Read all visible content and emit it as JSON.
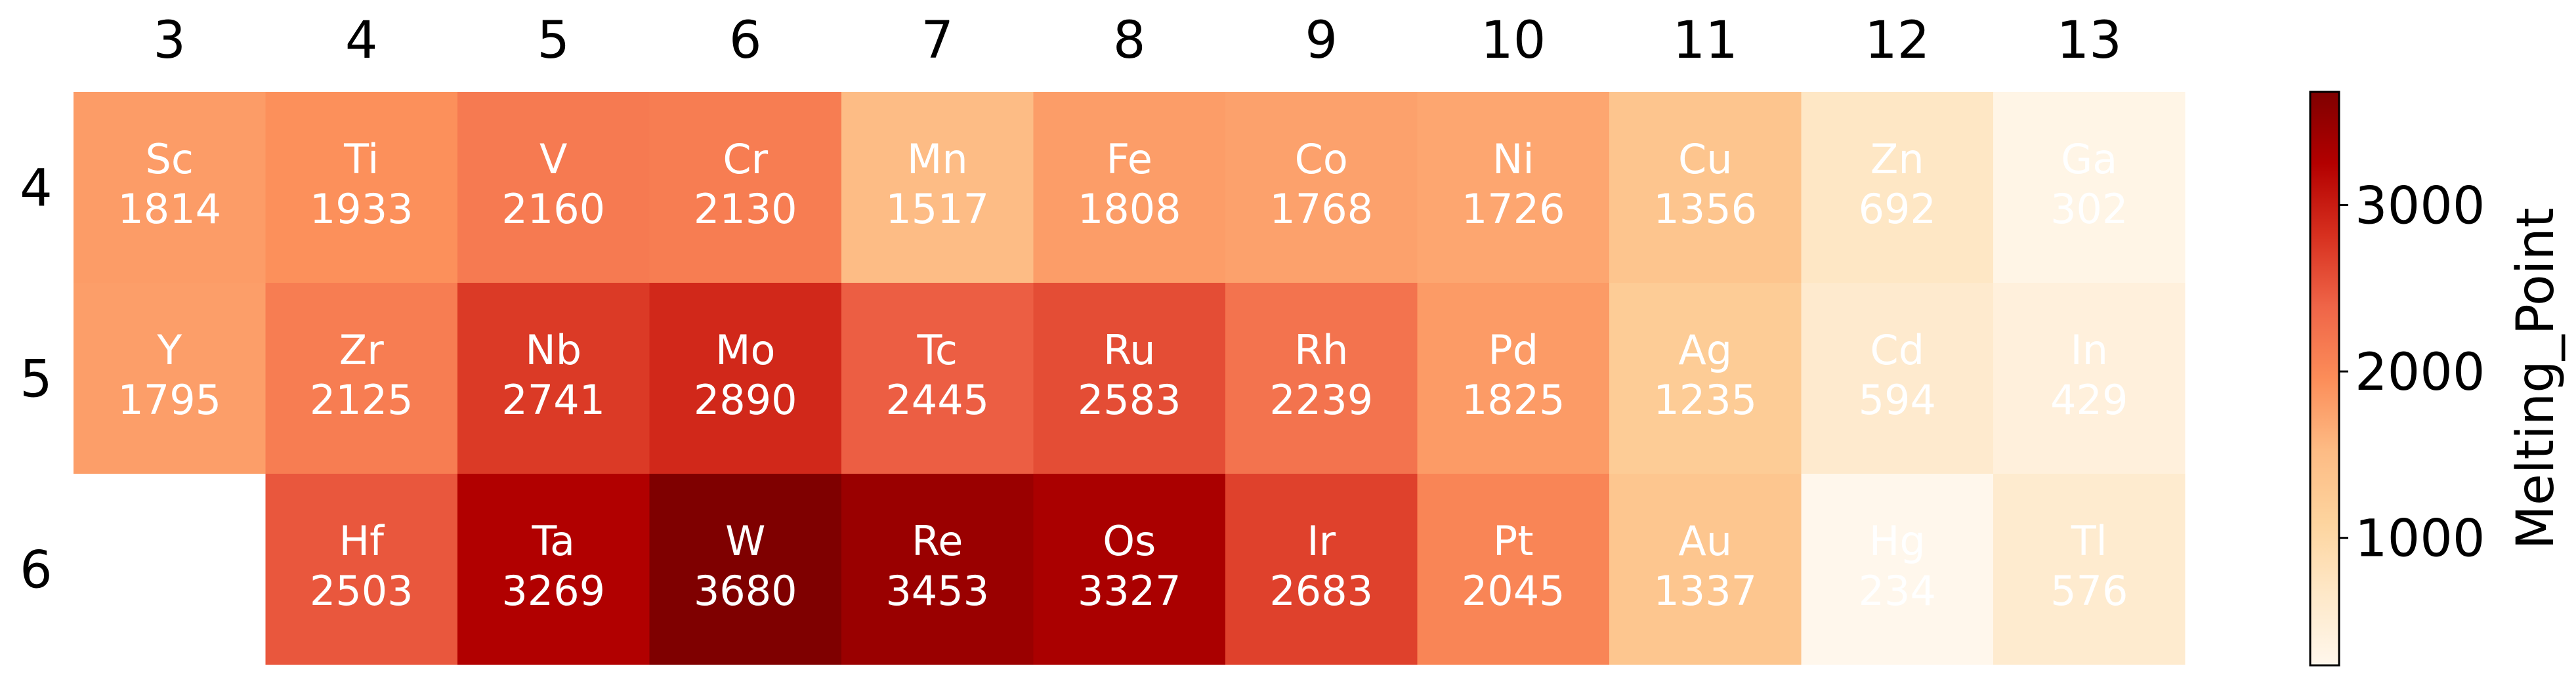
{
  "chart_data": {
    "type": "heatmap",
    "title": "",
    "xlabel": "",
    "ylabel": "",
    "colorbar_label": "Melting_Point",
    "colormap": "OrRd",
    "x_categories": [
      "3",
      "4",
      "5",
      "6",
      "7",
      "8",
      "9",
      "10",
      "11",
      "12",
      "13"
    ],
    "y_categories": [
      "4",
      "5",
      "6"
    ],
    "vmin": 234,
    "vmax": 3680,
    "colorbar_ticks": [
      "1000",
      "2000",
      "3000"
    ],
    "cells": [
      {
        "group": "3",
        "period": "4",
        "symbol": "Sc",
        "value": 1814
      },
      {
        "group": "4",
        "period": "4",
        "symbol": "Ti",
        "value": 1933
      },
      {
        "group": "5",
        "period": "4",
        "symbol": "V",
        "value": 2160
      },
      {
        "group": "6",
        "period": "4",
        "symbol": "Cr",
        "value": 2130
      },
      {
        "group": "7",
        "period": "4",
        "symbol": "Mn",
        "value": 1517
      },
      {
        "group": "8",
        "period": "4",
        "symbol": "Fe",
        "value": 1808
      },
      {
        "group": "9",
        "period": "4",
        "symbol": "Co",
        "value": 1768
      },
      {
        "group": "10",
        "period": "4",
        "symbol": "Ni",
        "value": 1726
      },
      {
        "group": "11",
        "period": "4",
        "symbol": "Cu",
        "value": 1356
      },
      {
        "group": "12",
        "period": "4",
        "symbol": "Zn",
        "value": 692
      },
      {
        "group": "13",
        "period": "4",
        "symbol": "Ga",
        "value": 302
      },
      {
        "group": "3",
        "period": "5",
        "symbol": "Y",
        "value": 1795
      },
      {
        "group": "4",
        "period": "5",
        "symbol": "Zr",
        "value": 2125
      },
      {
        "group": "5",
        "period": "5",
        "symbol": "Nb",
        "value": 2741
      },
      {
        "group": "6",
        "period": "5",
        "symbol": "Mo",
        "value": 2890
      },
      {
        "group": "7",
        "period": "5",
        "symbol": "Tc",
        "value": 2445
      },
      {
        "group": "8",
        "period": "5",
        "symbol": "Ru",
        "value": 2583
      },
      {
        "group": "9",
        "period": "5",
        "symbol": "Rh",
        "value": 2239
      },
      {
        "group": "10",
        "period": "5",
        "symbol": "Pd",
        "value": 1825
      },
      {
        "group": "11",
        "period": "5",
        "symbol": "Ag",
        "value": 1235
      },
      {
        "group": "12",
        "period": "5",
        "symbol": "Cd",
        "value": 594
      },
      {
        "group": "13",
        "period": "5",
        "symbol": "In",
        "value": 429
      },
      {
        "group": "4",
        "period": "6",
        "symbol": "Hf",
        "value": 2503
      },
      {
        "group": "5",
        "period": "6",
        "symbol": "Ta",
        "value": 3269
      },
      {
        "group": "6",
        "period": "6",
        "symbol": "W",
        "value": 3680
      },
      {
        "group": "7",
        "period": "6",
        "symbol": "Re",
        "value": 3453
      },
      {
        "group": "8",
        "period": "6",
        "symbol": "Os",
        "value": 3327
      },
      {
        "group": "9",
        "period": "6",
        "symbol": "Ir",
        "value": 2683
      },
      {
        "group": "10",
        "period": "6",
        "symbol": "Pt",
        "value": 2045
      },
      {
        "group": "11",
        "period": "6",
        "symbol": "Au",
        "value": 1337
      },
      {
        "group": "12",
        "period": "6",
        "symbol": "Hg",
        "value": 234
      },
      {
        "group": "13",
        "period": "6",
        "symbol": "Tl",
        "value": 576
      }
    ]
  }
}
